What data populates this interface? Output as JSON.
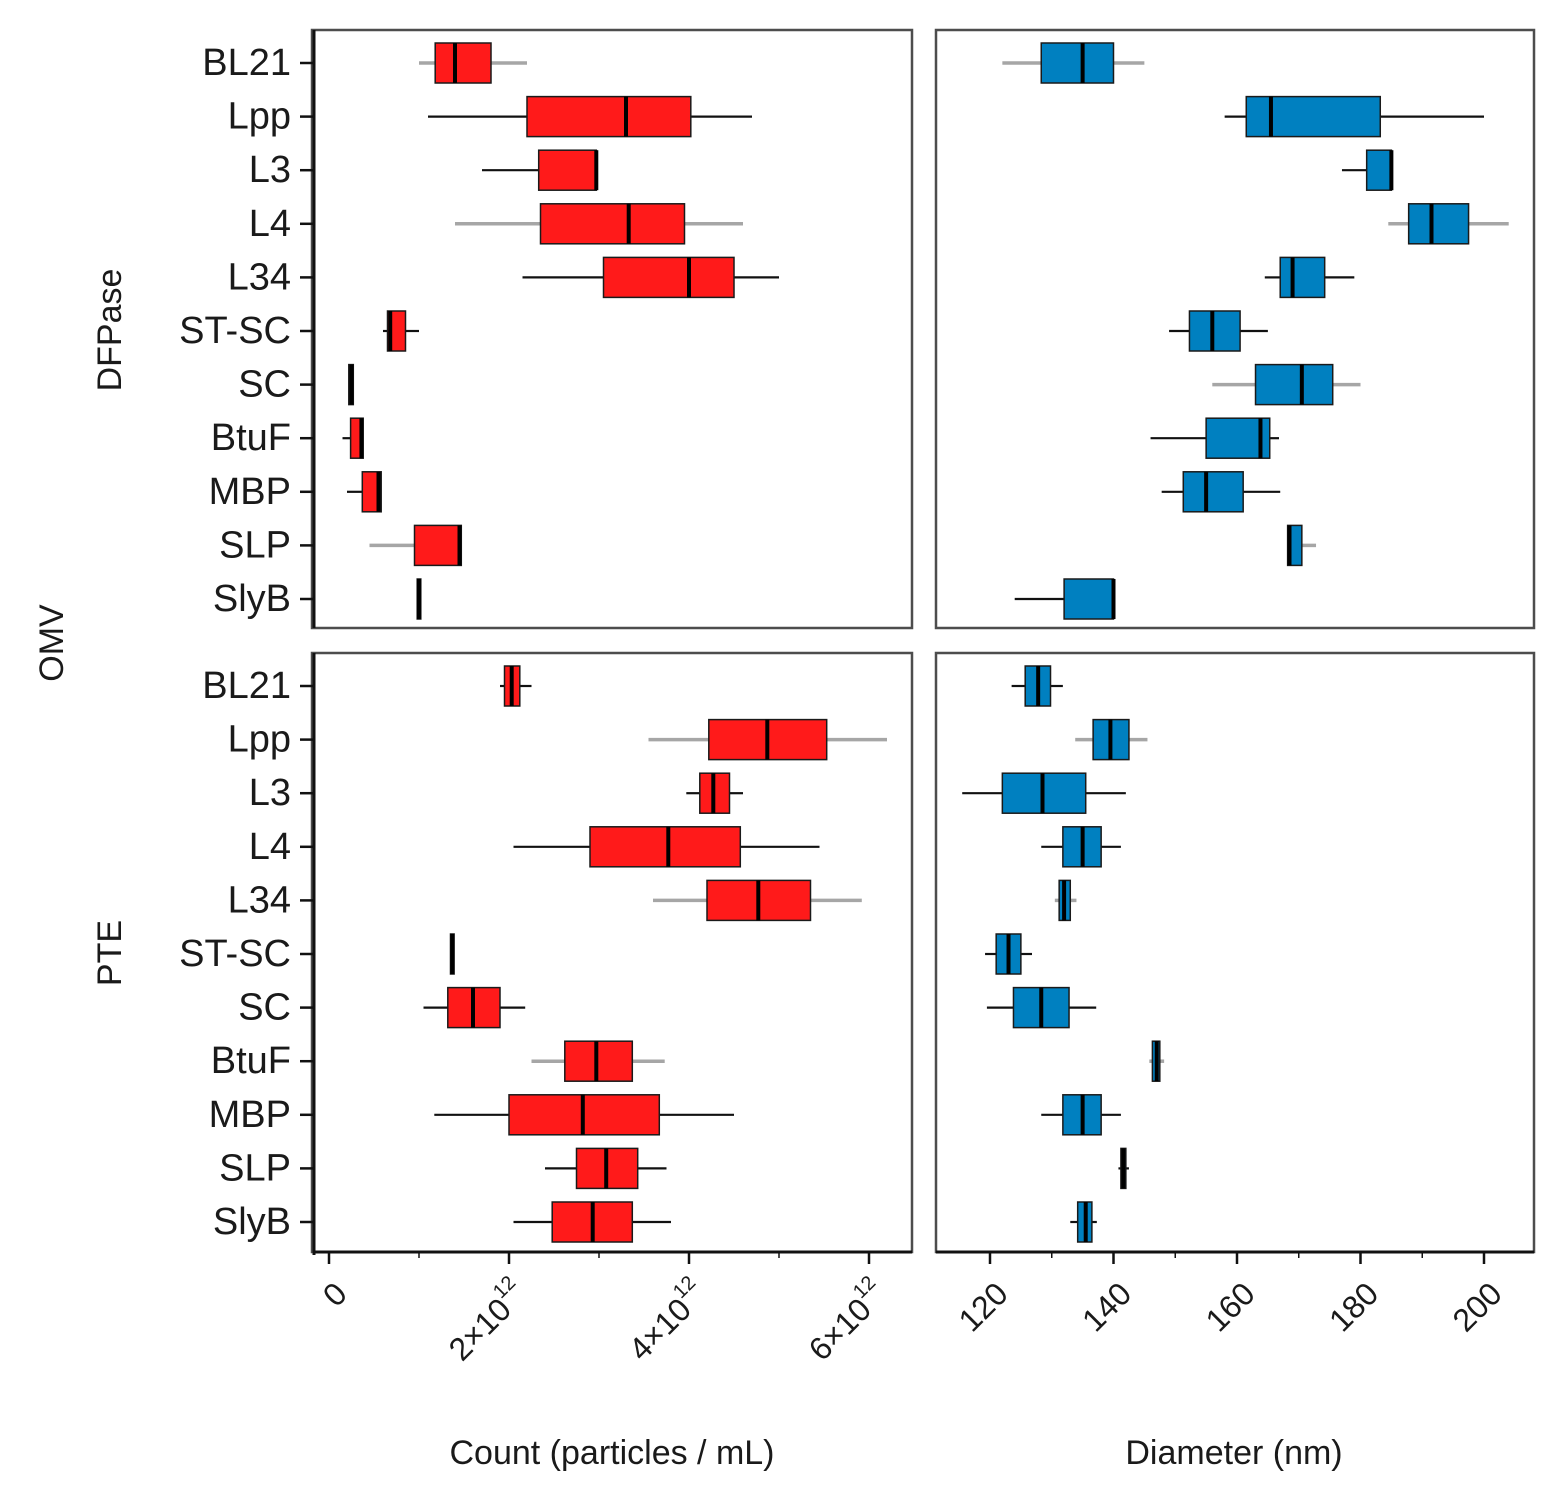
{
  "chart_data": {
    "type": "boxplot",
    "outer_row_label": "OMV",
    "row_facets": [
      "DFPase",
      "PTE"
    ],
    "categories": [
      "BL21",
      "Lpp",
      "L3",
      "L4",
      "L34",
      "ST-SC",
      "SC",
      "BtuF",
      "MBP",
      "SLP",
      "SlyB"
    ],
    "x_axis_count": {
      "xlabel": "Count (particles / mL)",
      "xlim": [
        -100000000000.0,
        6500000000000.0
      ],
      "ticks": [
        0,
        2000000000000.0,
        4000000000000.0,
        6000000000000.0
      ],
      "tick_labels": [
        {
          "base": "0",
          "exp": ""
        },
        {
          "base": "2×10",
          "exp": "12"
        },
        {
          "base": "4×10",
          "exp": "12"
        },
        {
          "base": "6×10",
          "exp": "12"
        }
      ]
    },
    "x_axis_diameter": {
      "xlabel": "Diameter (nm)",
      "xlim": [
        112,
        208
      ],
      "ticks": [
        120,
        140,
        160,
        180,
        200
      ],
      "tick_labels": [
        "120",
        "140",
        "160",
        "180",
        "200"
      ]
    },
    "colors": {
      "count_box": "#ff1a1a",
      "diameter_box": "#0080c0",
      "line_dark": "#111111",
      "line_gray": "#a6a6a6"
    },
    "panels": [
      {
        "facet": "DFPase",
        "metric": "count",
        "fill": "#ff1a1a",
        "boxes": [
          {
            "category": "BL21",
            "min": 1000000000000.0,
            "q1": 1180000000000.0,
            "median": 1400000000000.0,
            "q3": 1800000000000.0,
            "max": 2200000000000.0,
            "whisker": "gray"
          },
          {
            "category": "Lpp",
            "min": 1100000000000.0,
            "q1": 2200000000000.0,
            "median": 3300000000000.0,
            "q3": 4020000000000.0,
            "max": 4700000000000.0,
            "whisker": "dark"
          },
          {
            "category": "L3",
            "min": 1700000000000.0,
            "q1": 2330000000000.0,
            "median": 2970000000000.0,
            "q3": 2970000000000.0,
            "max": 2970000000000.0,
            "whisker": "dark"
          },
          {
            "category": "L4",
            "min": 1400000000000.0,
            "q1": 2350000000000.0,
            "median": 3330000000000.0,
            "q3": 3950000000000.0,
            "max": 4600000000000.0,
            "whisker": "gray"
          },
          {
            "category": "L34",
            "min": 2150000000000.0,
            "q1": 3050000000000.0,
            "median": 4000000000000.0,
            "q3": 4500000000000.0,
            "max": 5000000000000.0,
            "whisker": "dark"
          },
          {
            "category": "ST-SC",
            "min": 600000000000.0,
            "q1": 650000000000.0,
            "median": 680000000000.0,
            "q3": 850000000000.0,
            "max": 1000000000000.0,
            "whisker": "dark"
          },
          {
            "category": "SC",
            "min": 220000000000.0,
            "q1": 220000000000.0,
            "median": 250000000000.0,
            "q3": 270000000000.0,
            "max": 270000000000.0,
            "whisker": "dark"
          },
          {
            "category": "BtuF",
            "min": 150000000000.0,
            "q1": 240000000000.0,
            "median": 360000000000.0,
            "q3": 380000000000.0,
            "max": 380000000000.0,
            "whisker": "dark"
          },
          {
            "category": "MBP",
            "min": 200000000000.0,
            "q1": 370000000000.0,
            "median": 550000000000.0,
            "q3": 580000000000.0,
            "max": 580000000000.0,
            "whisker": "dark"
          },
          {
            "category": "SLP",
            "min": 450000000000.0,
            "q1": 950000000000.0,
            "median": 1450000000000.0,
            "q3": 1470000000000.0,
            "max": 1470000000000.0,
            "whisker": "gray"
          },
          {
            "category": "SlyB",
            "min": 980000000000.0,
            "q1": 980000000000.0,
            "median": 1000000000000.0,
            "q3": 1020000000000.0,
            "max": 1020000000000.0,
            "whisker": "dark"
          }
        ]
      },
      {
        "facet": "DFPase",
        "metric": "diameter",
        "fill": "#0080c0",
        "boxes": [
          {
            "category": "BL21",
            "min": 122,
            "q1": 128.3,
            "median": 135,
            "q3": 140,
            "max": 145,
            "whisker": "gray"
          },
          {
            "category": "Lpp",
            "min": 158,
            "q1": 161.5,
            "median": 165.5,
            "q3": 183.2,
            "max": 200,
            "whisker": "dark"
          },
          {
            "category": "L3",
            "min": 177,
            "q1": 181,
            "median": 185,
            "q3": 185,
            "max": 185,
            "whisker": "dark"
          },
          {
            "category": "L4",
            "min": 184.5,
            "q1": 187.8,
            "median": 191.5,
            "q3": 197.5,
            "max": 204,
            "whisker": "gray"
          },
          {
            "category": "L34",
            "min": 164.5,
            "q1": 167,
            "median": 169,
            "q3": 174.2,
            "max": 179,
            "whisker": "dark"
          },
          {
            "category": "ST-SC",
            "min": 149,
            "q1": 152.3,
            "median": 156,
            "q3": 160.5,
            "max": 165,
            "whisker": "dark"
          },
          {
            "category": "SC",
            "min": 156,
            "q1": 163,
            "median": 170.5,
            "q3": 175.5,
            "max": 180,
            "whisker": "gray"
          },
          {
            "category": "BtuF",
            "min": 146,
            "q1": 155,
            "median": 163.8,
            "q3": 165.3,
            "max": 166.8,
            "whisker": "dark"
          },
          {
            "category": "MBP",
            "min": 147.8,
            "q1": 151.3,
            "median": 155,
            "q3": 161,
            "max": 167,
            "whisker": "dark"
          },
          {
            "category": "SLP",
            "min": 168.2,
            "q1": 168.2,
            "median": 168.5,
            "q3": 170.5,
            "max": 172.8,
            "whisker": "gray"
          },
          {
            "category": "SlyB",
            "min": 124,
            "q1": 132,
            "median": 140,
            "q3": 140,
            "max": 140,
            "whisker": "dark"
          }
        ]
      },
      {
        "facet": "PTE",
        "metric": "count",
        "fill": "#ff1a1a",
        "boxes": [
          {
            "category": "BL21",
            "min": 1900000000000.0,
            "q1": 1950000000000.0,
            "median": 2030000000000.0,
            "q3": 2120000000000.0,
            "max": 2250000000000.0,
            "whisker": "dark"
          },
          {
            "category": "Lpp",
            "min": 3550000000000.0,
            "q1": 4220000000000.0,
            "median": 4870000000000.0,
            "q3": 5530000000000.0,
            "max": 6200000000000.0,
            "whisker": "gray"
          },
          {
            "category": "L3",
            "min": 3970000000000.0,
            "q1": 4120000000000.0,
            "median": 4270000000000.0,
            "q3": 4450000000000.0,
            "max": 4600000000000.0,
            "whisker": "dark"
          },
          {
            "category": "L4",
            "min": 2050000000000.0,
            "q1": 2900000000000.0,
            "median": 3770000000000.0,
            "q3": 4570000000000.0,
            "max": 5450000000000.0,
            "whisker": "dark"
          },
          {
            "category": "L34",
            "min": 3600000000000.0,
            "q1": 4200000000000.0,
            "median": 4770000000000.0,
            "q3": 5350000000000.0,
            "max": 5920000000000.0,
            "whisker": "gray"
          },
          {
            "category": "ST-SC",
            "min": 1350000000000.0,
            "q1": 1350000000000.0,
            "median": 1370000000000.0,
            "q3": 1390000000000.0,
            "max": 1390000000000.0,
            "whisker": "dark"
          },
          {
            "category": "SC",
            "min": 1050000000000.0,
            "q1": 1320000000000.0,
            "median": 1600000000000.0,
            "q3": 1900000000000.0,
            "max": 2180000000000.0,
            "whisker": "dark"
          },
          {
            "category": "BtuF",
            "min": 2250000000000.0,
            "q1": 2620000000000.0,
            "median": 2970000000000.0,
            "q3": 3370000000000.0,
            "max": 3730000000000.0,
            "whisker": "gray"
          },
          {
            "category": "MBP",
            "min": 1170000000000.0,
            "q1": 2000000000000.0,
            "median": 2820000000000.0,
            "q3": 3670000000000.0,
            "max": 4500000000000.0,
            "whisker": "dark"
          },
          {
            "category": "SLP",
            "min": 2400000000000.0,
            "q1": 2750000000000.0,
            "median": 3080000000000.0,
            "q3": 3430000000000.0,
            "max": 3750000000000.0,
            "whisker": "dark"
          },
          {
            "category": "SlyB",
            "min": 2050000000000.0,
            "q1": 2480000000000.0,
            "median": 2930000000000.0,
            "q3": 3370000000000.0,
            "max": 3800000000000.0,
            "whisker": "dark"
          }
        ]
      },
      {
        "facet": "PTE",
        "metric": "diameter",
        "fill": "#0080c0",
        "boxes": [
          {
            "category": "BL21",
            "min": 123.5,
            "q1": 125.7,
            "median": 127.8,
            "q3": 129.8,
            "max": 131.8,
            "whisker": "dark"
          },
          {
            "category": "Lpp",
            "min": 133.8,
            "q1": 136.7,
            "median": 139.5,
            "q3": 142.5,
            "max": 145.5,
            "whisker": "gray"
          },
          {
            "category": "L3",
            "min": 115.5,
            "q1": 122,
            "median": 128.5,
            "q3": 135.5,
            "max": 142,
            "whisker": "dark"
          },
          {
            "category": "L4",
            "min": 128.3,
            "q1": 131.8,
            "median": 135,
            "q3": 138,
            "max": 141.2,
            "whisker": "dark"
          },
          {
            "category": "L34",
            "min": 130.5,
            "q1": 131.2,
            "median": 132,
            "q3": 133,
            "max": 134,
            "whisker": "gray"
          },
          {
            "category": "ST-SC",
            "min": 119.2,
            "q1": 121,
            "median": 123,
            "q3": 125,
            "max": 126.8,
            "whisker": "dark"
          },
          {
            "category": "SC",
            "min": 119.5,
            "q1": 123.8,
            "median": 128.3,
            "q3": 132.8,
            "max": 137.2,
            "whisker": "dark"
          },
          {
            "category": "BtuF",
            "min": 145.8,
            "q1": 146.3,
            "median": 147,
            "q3": 147.5,
            "max": 148.2,
            "whisker": "gray"
          },
          {
            "category": "MBP",
            "min": 128.3,
            "q1": 131.8,
            "median": 135,
            "q3": 138,
            "max": 141.2,
            "whisker": "dark"
          },
          {
            "category": "SLP",
            "min": 140.8,
            "q1": 141.2,
            "median": 141.6,
            "q3": 142,
            "max": 142.5,
            "whisker": "dark"
          },
          {
            "category": "SlyB",
            "min": 133,
            "q1": 134.2,
            "median": 135.5,
            "q3": 136.5,
            "max": 137.3,
            "whisker": "dark"
          }
        ]
      }
    ]
  }
}
